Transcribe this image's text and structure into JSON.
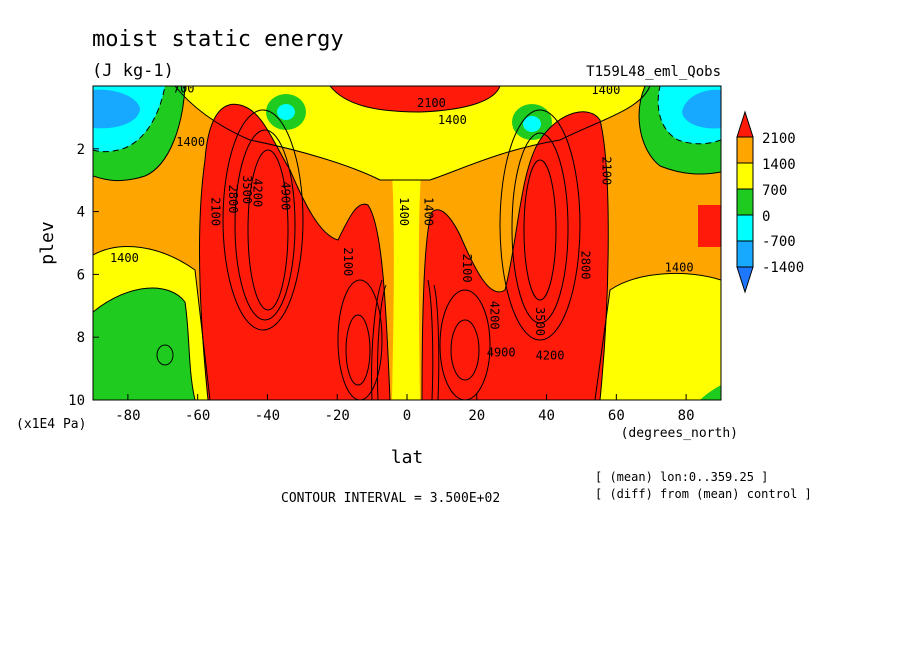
{
  "header": {
    "title": "moist static energy",
    "units": "(J kg-1)",
    "run_name": "T159L48_eml_Qobs"
  },
  "footer": {
    "contour_interval": "CONTOUR INTERVAL = 3.500E+02",
    "note_mean": "[ (mean) lon:0..359.25 ]",
    "note_diff": "[ (diff) from (mean) control ]"
  },
  "chart_data": {
    "type": "contour",
    "xlabel": "lat",
    "x_units": "(degrees_north)",
    "ylabel": "plev",
    "y_units": "(x1E4 Pa)",
    "xlim": [
      -90,
      90
    ],
    "ylim": [
      0,
      10
    ],
    "y_inverted": true,
    "x_ticks": [
      -80,
      -60,
      -40,
      -20,
      0,
      20,
      40,
      60,
      80
    ],
    "y_ticks": [
      2,
      4,
      6,
      8,
      10
    ],
    "colorbar": {
      "labels": [
        "2100",
        "1400",
        "700",
        "0",
        "-700",
        "-1400"
      ],
      "colors": {
        "above_2100": "#ff1a0a",
        "c1400_2100": "#ffa500",
        "c700_1400": "#ffff00",
        "c0_700": "#1ecb1e",
        "cm700_0": "#00ffff",
        "cm1400_m700": "#17a8ff",
        "below_m1400": "#1e78ff"
      }
    },
    "contour_labels": [
      {
        "text": "700",
        "lat": -64,
        "p": 0.1
      },
      {
        "text": "2100",
        "lat": 7,
        "p": 0.55
      },
      {
        "text": "1400",
        "lat": 13,
        "p": 1.1
      },
      {
        "text": "1400",
        "lat": 57,
        "p": 0.15
      },
      {
        "text": "1400",
        "lat": -62,
        "p": 1.8
      },
      {
        "text": "2100",
        "lat": -55,
        "p": 4.0
      },
      {
        "text": "2800",
        "lat": -50,
        "p": 3.6
      },
      {
        "text": "3500",
        "lat": -46,
        "p": 3.3
      },
      {
        "text": "4200",
        "lat": -43,
        "p": 3.4
      },
      {
        "text": "4900",
        "lat": -35,
        "p": 3.5
      },
      {
        "text": "1400",
        "lat": -1,
        "p": 4.0
      },
      {
        "text": "1400",
        "lat": 6,
        "p": 4.0
      },
      {
        "text": "1400",
        "lat": -81,
        "p": 5.5
      },
      {
        "text": "2100",
        "lat": -17,
        "p": 5.6
      },
      {
        "text": "2100",
        "lat": 17,
        "p": 5.8
      },
      {
        "text": "2100",
        "lat": 57,
        "p": 2.7
      },
      {
        "text": "2800",
        "lat": 51,
        "p": 5.7
      },
      {
        "text": "3500",
        "lat": 38,
        "p": 7.5
      },
      {
        "text": "4200",
        "lat": 25,
        "p": 7.3
      },
      {
        "text": "4900",
        "lat": 27,
        "p": 8.5
      },
      {
        "text": "4200",
        "lat": 41,
        "p": 8.6
      },
      {
        "text": "1400",
        "lat": 78,
        "p": 5.8
      }
    ]
  }
}
